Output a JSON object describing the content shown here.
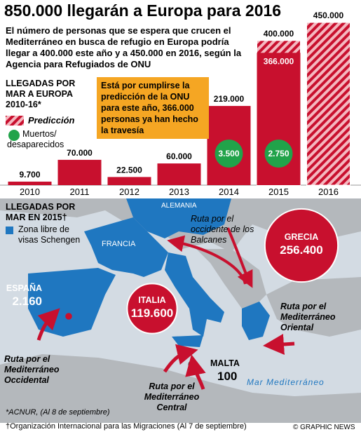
{
  "chart_data": {
    "type": "bar",
    "title": "850.000 llegarán a Europa para 2016",
    "subtitle": "El número de personas que se espera que crucen el Mediterráneo en busca de refugio en Europa podría llegar a 400.000 este año y a 450.000 en 2016, según la Agencia para Refugiados de ONU",
    "chart_label": "LLEGADAS POR MAR A EUROPA 2010-16*",
    "categories": [
      "2010",
      "2011",
      "2012",
      "2013",
      "2014",
      "2015",
      "2016"
    ],
    "values": [
      9700,
      70000,
      22500,
      60000,
      219000,
      366000,
      null
    ],
    "value_labels": [
      "9.700",
      "70.000",
      "22.500",
      "60.000",
      "219.000",
      "366.000",
      null
    ],
    "color": "#c8102e",
    "prediction": {
      "name": "Predicción",
      "values": [
        null,
        null,
        null,
        null,
        null,
        400000,
        450000
      ],
      "value_labels": [
        null,
        null,
        null,
        null,
        null,
        "400.000",
        "450.000"
      ],
      "color": "#c8102e"
    },
    "deaths": {
      "name": "Muertos/ desaparecidos",
      "values": [
        null,
        null,
        null,
        null,
        3500,
        2750,
        null
      ],
      "value_labels": [
        null,
        null,
        null,
        null,
        "3.500",
        "2.750",
        null
      ],
      "color": "#21a34a"
    },
    "callout": "Está por cumplirse la predicción de la ONU para este año, 366.000 personas ya han hecho la travesía",
    "ylim": [
      0,
      450000
    ]
  },
  "map": {
    "title": "LLEGADAS POR MAR EN 2015†",
    "legend": "Zona libre de visas Schengen",
    "color": "#1f77c0",
    "countries": [
      {
        "name": "ESPAÑA",
        "value": 2160,
        "value_label": "2.160"
      },
      {
        "name": "ITALIA",
        "value": 119600,
        "value_label": "119.600"
      },
      {
        "name": "GRECIA",
        "value": 256400,
        "value_label": "256.400"
      },
      {
        "name": "MALTA",
        "value": 100,
        "value_label": "100"
      }
    ],
    "places": [
      "FRANCIA",
      "ALEMANIA"
    ],
    "sea": "Mar Mediterráneo",
    "routes": [
      "Ruta por el occidente de los Balcanes",
      "Ruta por el Mediterráneo Oriental",
      "Ruta por el Mediterráneo Central",
      "Ruta por el Mediterráneo Occidental"
    ]
  },
  "footnotes": [
    "*ACNUR, (Al 8 de septiembre)",
    "†Organización Internacional para las Migraciones (Al 7 de septiembre)"
  ],
  "credit": "© GRAPHIC NEWS"
}
